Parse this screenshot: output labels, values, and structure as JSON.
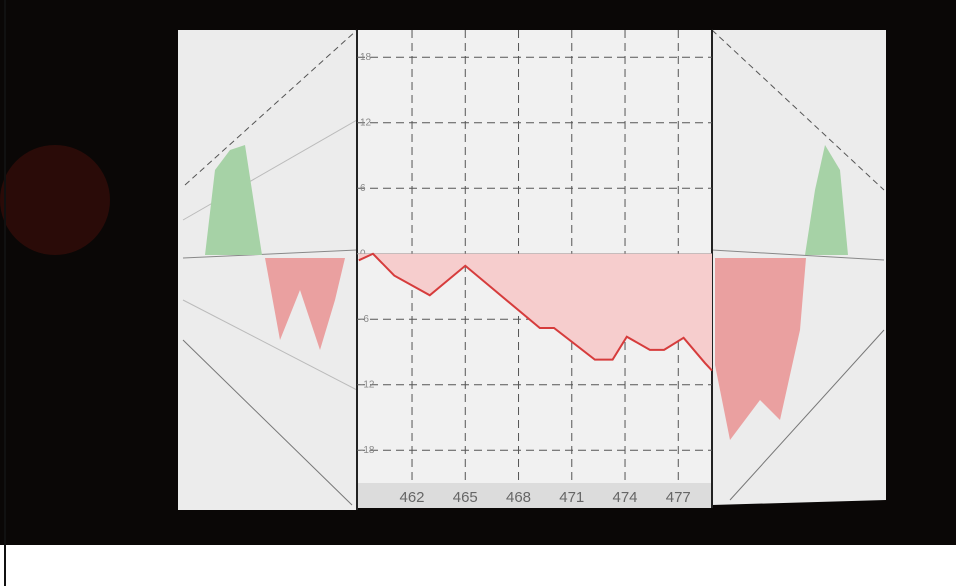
{
  "chart_data": {
    "type": "area",
    "x": [
      459,
      459.8,
      461,
      463,
      465,
      466.4,
      469.2,
      470,
      472.3,
      473.3,
      474.1,
      475.4,
      476.2,
      477.3,
      478.5,
      478.9
    ],
    "values": [
      -0.6,
      0,
      -2,
      -3.8,
      -1.1,
      -3,
      -6.8,
      -6.8,
      -9.7,
      -9.7,
      -7.6,
      -8.8,
      -8.8,
      -7.7,
      -10,
      -10.7
    ],
    "color": "#d63c3c",
    "fill_color": "#f6cdcd",
    "xlim": [
      458.9,
      478.9
    ],
    "ylim": [
      -21,
      20.5
    ],
    "xticks": [
      462,
      465,
      468,
      471,
      474,
      477
    ],
    "yticks": [
      18,
      12,
      6,
      0,
      -6,
      -12,
      -18
    ],
    "grid": true
  }
}
